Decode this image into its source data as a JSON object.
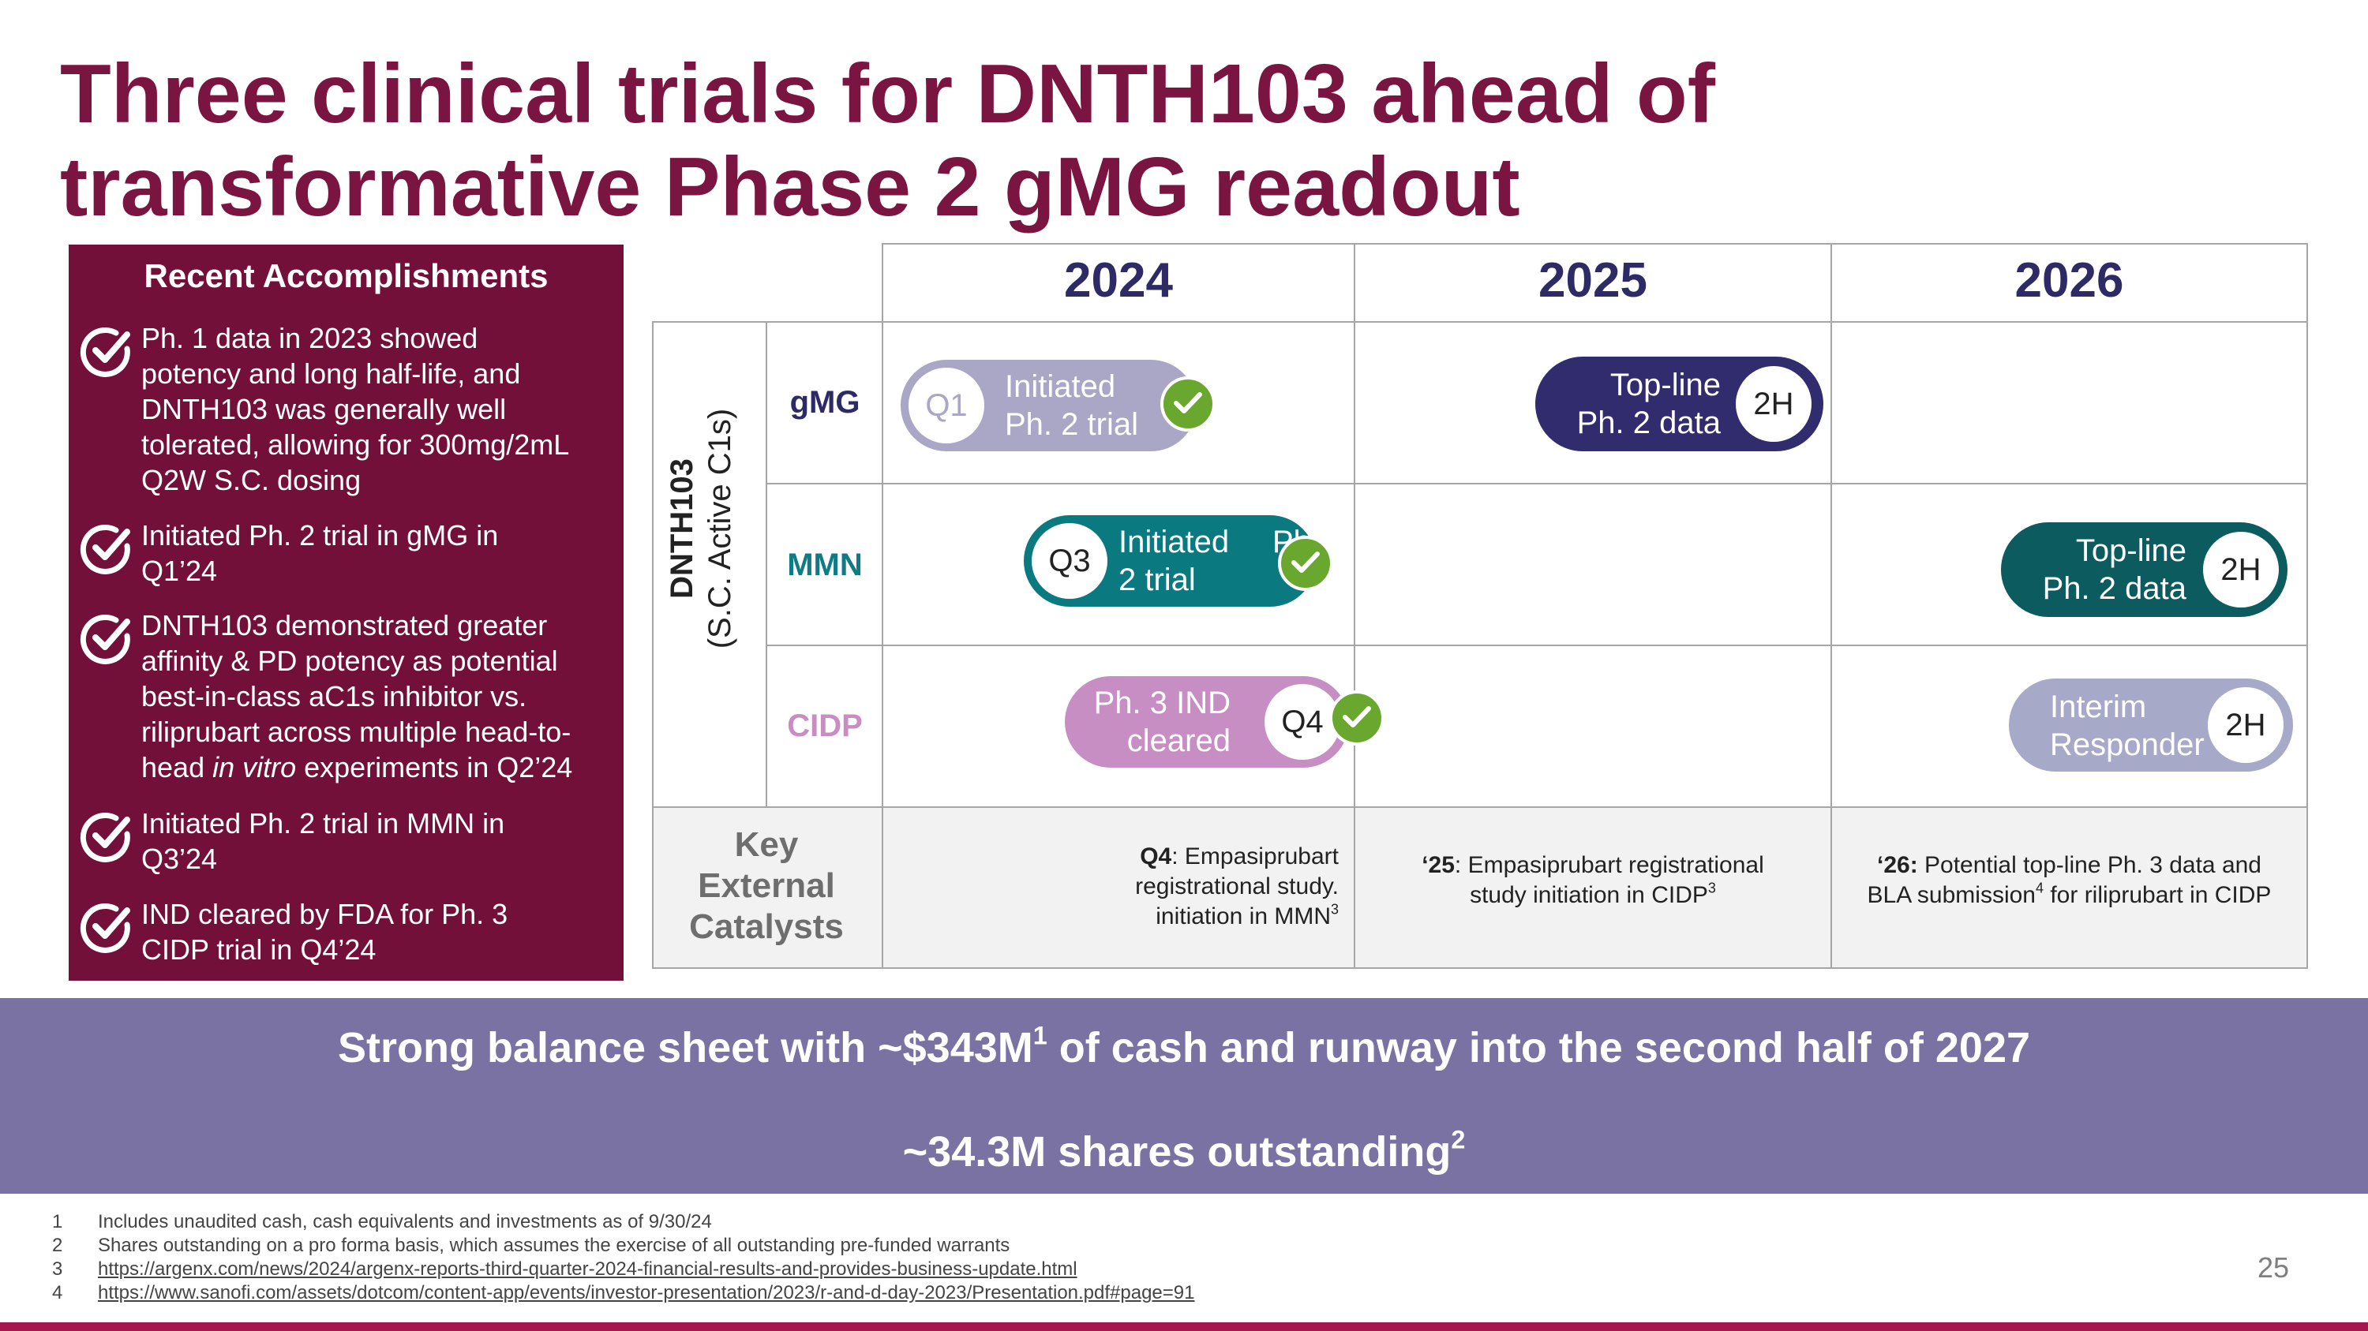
{
  "title": {
    "line1": "Three clinical trials for DNTH103 ahead of",
    "line2": "transformative Phase 2 gMG readout"
  },
  "accomplishments": {
    "heading": "Recent Accomplishments",
    "items": [
      {
        "lines": [
          "Ph. 1 data in 2023 showed",
          "potency and long half-life, and",
          "DNTH103 was generally well",
          "tolerated, allowing for 300mg/2mL",
          "Q2W S.C. dosing"
        ]
      },
      {
        "lines": [
          "Initiated Ph. 2 trial in gMG in",
          "Q1’24"
        ]
      },
      {
        "lines": [
          "DNTH103 demonstrated greater",
          "affinity & PD potency as potential",
          "best-in-class aC1s inhibitor vs.",
          "riliprubart across multiple head-to-"
        ],
        "last_pre": "head ",
        "last_italic": "in vitro",
        "last_post": " experiments in Q2’24"
      },
      {
        "lines": [
          "Initiated Ph. 2 trial in MMN in",
          "Q3’24"
        ]
      },
      {
        "lines": [
          "IND cleared by FDA for Ph. 3",
          "CIDP trial in Q4’24"
        ]
      }
    ],
    "icon": "check-circle-icon"
  },
  "timeline": {
    "years": [
      "2024",
      "2025",
      "2026"
    ],
    "program_name": "DNTH103",
    "program_sub": "(S.C. Active C1s)",
    "rows": [
      {
        "label": "gMG",
        "color": "#2d2a66"
      },
      {
        "label": "MMN",
        "color": "#0f7b84"
      },
      {
        "label": "CIDP",
        "color": "#c98dc3"
      }
    ],
    "milestones": {
      "gmg_2024": {
        "badge": "Q1",
        "line1": "Initiated",
        "line2": "Ph. 2 trial",
        "color": "#a9a6c6",
        "status": "completed"
      },
      "gmg_2025": {
        "badge": "2H",
        "line1": "Top-line",
        "line2": "Ph. 2 data",
        "color": "#312c6e"
      },
      "mmn_2024": {
        "badge": "Q3",
        "line1": "Initiated",
        "line1_cut": "Ph",
        "line2": "2 trial",
        "color": "#0a7a80",
        "status": "completed"
      },
      "mmn_2026": {
        "badge": "2H",
        "line1": "Top-line",
        "line2": "Ph. 2 data",
        "color": "#0b5b5f"
      },
      "cidp_2024": {
        "badge": "Q4",
        "line1": "Ph. 3 IND",
        "line2": "cleared",
        "color": "#c78ec3",
        "status": "completed"
      },
      "cidp_2026": {
        "badge": "2H",
        "line1": "Interim",
        "line2": "Responder",
        "color": "#a7a9c9"
      }
    },
    "catalysts": {
      "label_lines": [
        "Key",
        "External",
        "Catalysts"
      ],
      "c2024": {
        "bold": "Q4",
        "text1": ": Empasiprubart",
        "text2": "registrational study.",
        "text3": "initiation in MMN",
        "sup": "3"
      },
      "c2025": {
        "bold": "‘25",
        "text1": ": Empasiprubart registrational",
        "text2": "study initiation in CIDP",
        "sup": "3"
      },
      "c2026": {
        "bold": "‘26:",
        "text1": " Potential top-line Ph. 3 data and",
        "text2": "BLA submission",
        "sup": "4",
        "text3": " for riliprubart in CIDP"
      }
    }
  },
  "banner": {
    "line1_pre": "Strong balance sheet with ~$343M",
    "line1_sup": "1",
    "line1_post": " of cash and runway into the second half of 2027",
    "line2_pre": "~34.3M shares outstanding",
    "line2_sup": "2"
  },
  "footnotes": [
    {
      "num": "1",
      "text": "Includes unaudited cash, cash equivalents and investments as of 9/30/24"
    },
    {
      "num": "2",
      "text": "Shares outstanding on a pro forma basis, which assumes the exercise of all outstanding pre-funded warrants"
    },
    {
      "num": "3",
      "text": "https://argenx.com/news/2024/argenx-reports-third-quarter-2024-financial-results-and-provides-business-update.html",
      "link": true
    },
    {
      "num": "4",
      "text": "https://www.sanofi.com/assets/dotcom/content-app/events/investor-presentation/2023/r-and-d-day-2023/Presentation.pdf#page=91",
      "link": true
    }
  ],
  "page_number": "25",
  "colors": {
    "brand": "#7a1440",
    "panel": "#721039",
    "banner": "#7a72a2",
    "check_green": "#6aa72f"
  }
}
